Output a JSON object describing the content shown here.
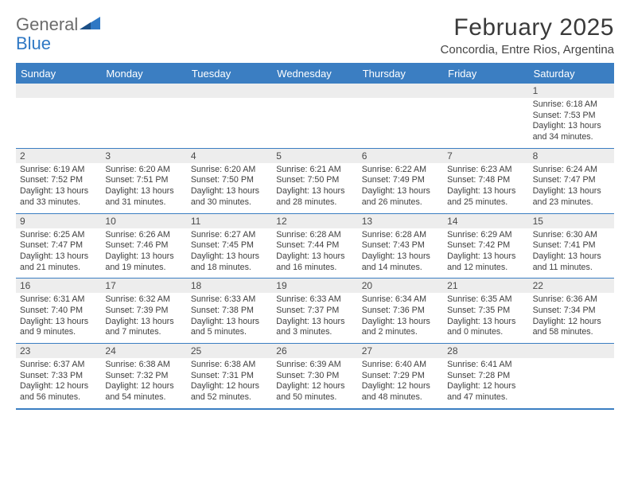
{
  "logo": {
    "word1": "General",
    "word2": "Blue"
  },
  "title": "February 2025",
  "location": "Concordia, Entre Rios, Argentina",
  "headerColors": {
    "bar": "#3b7ec2",
    "text": "#ffffff"
  },
  "dayNumBg": "#ededed",
  "borderColor": "#3b7ec2",
  "dow": [
    "Sunday",
    "Monday",
    "Tuesday",
    "Wednesday",
    "Thursday",
    "Friday",
    "Saturday"
  ],
  "weeks": [
    [
      null,
      null,
      null,
      null,
      null,
      null,
      {
        "n": "1",
        "sr": "Sunrise: 6:18 AM",
        "ss": "Sunset: 7:53 PM",
        "d1": "Daylight: 13 hours",
        "d2": "and 34 minutes."
      }
    ],
    [
      {
        "n": "2",
        "sr": "Sunrise: 6:19 AM",
        "ss": "Sunset: 7:52 PM",
        "d1": "Daylight: 13 hours",
        "d2": "and 33 minutes."
      },
      {
        "n": "3",
        "sr": "Sunrise: 6:20 AM",
        "ss": "Sunset: 7:51 PM",
        "d1": "Daylight: 13 hours",
        "d2": "and 31 minutes."
      },
      {
        "n": "4",
        "sr": "Sunrise: 6:20 AM",
        "ss": "Sunset: 7:50 PM",
        "d1": "Daylight: 13 hours",
        "d2": "and 30 minutes."
      },
      {
        "n": "5",
        "sr": "Sunrise: 6:21 AM",
        "ss": "Sunset: 7:50 PM",
        "d1": "Daylight: 13 hours",
        "d2": "and 28 minutes."
      },
      {
        "n": "6",
        "sr": "Sunrise: 6:22 AM",
        "ss": "Sunset: 7:49 PM",
        "d1": "Daylight: 13 hours",
        "d2": "and 26 minutes."
      },
      {
        "n": "7",
        "sr": "Sunrise: 6:23 AM",
        "ss": "Sunset: 7:48 PM",
        "d1": "Daylight: 13 hours",
        "d2": "and 25 minutes."
      },
      {
        "n": "8",
        "sr": "Sunrise: 6:24 AM",
        "ss": "Sunset: 7:47 PM",
        "d1": "Daylight: 13 hours",
        "d2": "and 23 minutes."
      }
    ],
    [
      {
        "n": "9",
        "sr": "Sunrise: 6:25 AM",
        "ss": "Sunset: 7:47 PM",
        "d1": "Daylight: 13 hours",
        "d2": "and 21 minutes."
      },
      {
        "n": "10",
        "sr": "Sunrise: 6:26 AM",
        "ss": "Sunset: 7:46 PM",
        "d1": "Daylight: 13 hours",
        "d2": "and 19 minutes."
      },
      {
        "n": "11",
        "sr": "Sunrise: 6:27 AM",
        "ss": "Sunset: 7:45 PM",
        "d1": "Daylight: 13 hours",
        "d2": "and 18 minutes."
      },
      {
        "n": "12",
        "sr": "Sunrise: 6:28 AM",
        "ss": "Sunset: 7:44 PM",
        "d1": "Daylight: 13 hours",
        "d2": "and 16 minutes."
      },
      {
        "n": "13",
        "sr": "Sunrise: 6:28 AM",
        "ss": "Sunset: 7:43 PM",
        "d1": "Daylight: 13 hours",
        "d2": "and 14 minutes."
      },
      {
        "n": "14",
        "sr": "Sunrise: 6:29 AM",
        "ss": "Sunset: 7:42 PM",
        "d1": "Daylight: 13 hours",
        "d2": "and 12 minutes."
      },
      {
        "n": "15",
        "sr": "Sunrise: 6:30 AM",
        "ss": "Sunset: 7:41 PM",
        "d1": "Daylight: 13 hours",
        "d2": "and 11 minutes."
      }
    ],
    [
      {
        "n": "16",
        "sr": "Sunrise: 6:31 AM",
        "ss": "Sunset: 7:40 PM",
        "d1": "Daylight: 13 hours",
        "d2": "and 9 minutes."
      },
      {
        "n": "17",
        "sr": "Sunrise: 6:32 AM",
        "ss": "Sunset: 7:39 PM",
        "d1": "Daylight: 13 hours",
        "d2": "and 7 minutes."
      },
      {
        "n": "18",
        "sr": "Sunrise: 6:33 AM",
        "ss": "Sunset: 7:38 PM",
        "d1": "Daylight: 13 hours",
        "d2": "and 5 minutes."
      },
      {
        "n": "19",
        "sr": "Sunrise: 6:33 AM",
        "ss": "Sunset: 7:37 PM",
        "d1": "Daylight: 13 hours",
        "d2": "and 3 minutes."
      },
      {
        "n": "20",
        "sr": "Sunrise: 6:34 AM",
        "ss": "Sunset: 7:36 PM",
        "d1": "Daylight: 13 hours",
        "d2": "and 2 minutes."
      },
      {
        "n": "21",
        "sr": "Sunrise: 6:35 AM",
        "ss": "Sunset: 7:35 PM",
        "d1": "Daylight: 13 hours",
        "d2": "and 0 minutes."
      },
      {
        "n": "22",
        "sr": "Sunrise: 6:36 AM",
        "ss": "Sunset: 7:34 PM",
        "d1": "Daylight: 12 hours",
        "d2": "and 58 minutes."
      }
    ],
    [
      {
        "n": "23",
        "sr": "Sunrise: 6:37 AM",
        "ss": "Sunset: 7:33 PM",
        "d1": "Daylight: 12 hours",
        "d2": "and 56 minutes."
      },
      {
        "n": "24",
        "sr": "Sunrise: 6:38 AM",
        "ss": "Sunset: 7:32 PM",
        "d1": "Daylight: 12 hours",
        "d2": "and 54 minutes."
      },
      {
        "n": "25",
        "sr": "Sunrise: 6:38 AM",
        "ss": "Sunset: 7:31 PM",
        "d1": "Daylight: 12 hours",
        "d2": "and 52 minutes."
      },
      {
        "n": "26",
        "sr": "Sunrise: 6:39 AM",
        "ss": "Sunset: 7:30 PM",
        "d1": "Daylight: 12 hours",
        "d2": "and 50 minutes."
      },
      {
        "n": "27",
        "sr": "Sunrise: 6:40 AM",
        "ss": "Sunset: 7:29 PM",
        "d1": "Daylight: 12 hours",
        "d2": "and 48 minutes."
      },
      {
        "n": "28",
        "sr": "Sunrise: 6:41 AM",
        "ss": "Sunset: 7:28 PM",
        "d1": "Daylight: 12 hours",
        "d2": "and 47 minutes."
      },
      null
    ]
  ]
}
